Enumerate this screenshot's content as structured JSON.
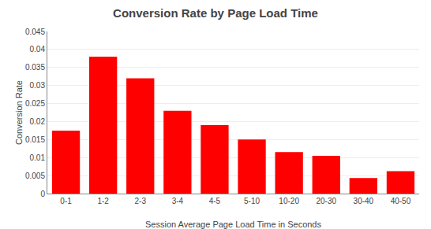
{
  "chart_data": {
    "type": "bar",
    "title": "Conversion Rate by Page Load Time",
    "xlabel": "Session Average Page Load Time in Seconds",
    "ylabel": "Conversion Rate",
    "categories": [
      "0-1",
      "1-2",
      "2-3",
      "3-4",
      "4-5",
      "5-10",
      "10-20",
      "20-30",
      "30-40",
      "40-50"
    ],
    "values": [
      0.0175,
      0.038,
      0.032,
      0.023,
      0.019,
      0.015,
      0.0115,
      0.0105,
      0.0043,
      0.0062
    ],
    "color": "#FF0000",
    "ylim": [
      0,
      0.045
    ],
    "yticks": [
      0,
      0.005,
      0.01,
      0.015,
      0.02,
      0.025,
      0.03,
      0.035,
      0.04,
      0.045
    ],
    "grid": true
  }
}
